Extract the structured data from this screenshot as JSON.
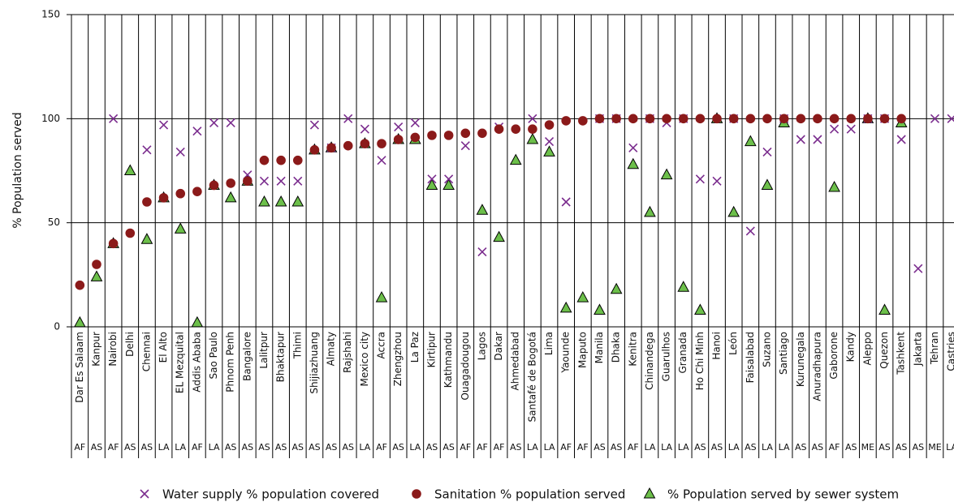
{
  "chart_data": {
    "type": "scatter",
    "y_label": "% Population served",
    "categories": [
      "Dar Es Salaam",
      "Kanpur",
      "Nairobi",
      "Delhi",
      "Chennai",
      "El Alto",
      "EL Mezquital",
      "Addis Ababa",
      "Sao Paulo",
      "Phnom Penh",
      "Bangalore",
      "Lalitpur",
      "Bhaktapur",
      "Thimi",
      "Shijiazhuang",
      "Almaty",
      "Rajshahi",
      "Mexico city",
      "Accra",
      "Zhengzhou",
      "La Paz",
      "Kirtipur",
      "Kathmandu",
      "Ouagadougou",
      "Lagos",
      "Dakar",
      "Ahmedabad",
      "Santafé de Bogotá",
      "Lima",
      "Yaounde",
      "Maputo",
      "Manila",
      "Dhaka",
      "Kenitra",
      "Chinandega",
      "Guarulhos",
      "Granada",
      "Ho Chi Minh",
      "Hanoi",
      "León",
      "Faisalabad",
      "Suzano",
      "Santiago",
      "Kurunegala",
      "Anuradhapura",
      "Gaborone",
      "Kandy",
      "Aleppo",
      "Quezon",
      "Tashkent",
      "Jakarta",
      "Tehran",
      "Castries"
    ],
    "regions": [
      "AF",
      "AS",
      "AF",
      "AS",
      "AS",
      "LA",
      "LA",
      "AF",
      "LA",
      "AS",
      "AS",
      "AS",
      "AS",
      "AS",
      "AS",
      "AS",
      "AS",
      "LA",
      "AF",
      "AS",
      "LA",
      "AS",
      "AS",
      "AF",
      "AF",
      "AF",
      "AS",
      "LA",
      "LA",
      "AF",
      "AF",
      "AS",
      "AS",
      "AF",
      "LA",
      "LA",
      "LA",
      "AS",
      "AS",
      "LA",
      "AS",
      "LA",
      "LA",
      "AS",
      "AS",
      "AF",
      "AS",
      "ME",
      "AS",
      "AS",
      "AS",
      "ME",
      "LA"
    ],
    "series": [
      {
        "name": "Water supply % population covered",
        "color": "#7b2d8e",
        "marker": "x",
        "values": [
          null,
          null,
          100,
          null,
          85,
          97,
          84,
          94,
          98,
          98,
          73,
          70,
          70,
          70,
          97,
          86,
          100,
          95,
          80,
          96,
          98,
          71,
          71,
          87,
          36,
          96,
          null,
          100,
          89,
          60,
          null,
          100,
          100,
          86,
          100,
          98,
          100,
          71,
          70,
          100,
          46,
          84,
          100,
          90,
          90,
          95,
          95,
          100,
          100,
          90,
          28,
          100,
          100
        ]
      },
      {
        "name": "Sanitation % population served",
        "color": "#8b1a1a",
        "marker": "circle",
        "values": [
          20,
          30,
          40,
          45,
          60,
          62,
          64,
          65,
          68,
          69,
          70,
          80,
          80,
          80,
          85,
          86,
          87,
          88,
          88,
          90,
          91,
          92,
          92,
          93,
          93,
          95,
          95,
          95,
          97,
          99,
          99,
          100,
          100,
          100,
          100,
          100,
          100,
          100,
          100,
          100,
          100,
          100,
          100,
          100,
          100,
          100,
          100,
          100,
          100,
          100,
          null,
          null,
          null
        ]
      },
      {
        "name": "% Population served by sewer system",
        "color": "#6cbf4a",
        "marker": "triangle",
        "values": [
          2,
          24,
          40,
          75,
          42,
          62,
          47,
          2,
          68,
          62,
          70,
          60,
          60,
          60,
          85,
          86,
          null,
          88,
          14,
          90,
          90,
          68,
          68,
          null,
          56,
          43,
          80,
          90,
          84,
          9,
          14,
          8,
          18,
          78,
          55,
          73,
          19,
          8,
          100,
          55,
          89,
          68,
          98,
          null,
          null,
          67,
          null,
          100,
          8,
          98,
          null,
          null,
          null
        ]
      }
    ],
    "ylim": [
      0,
      150
    ],
    "yticks": [
      0,
      50,
      100,
      150
    ],
    "grid": true
  }
}
